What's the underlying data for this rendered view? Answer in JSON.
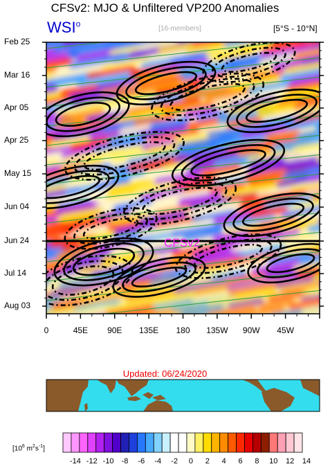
{
  "header": {
    "title": "CFSv2: MJO & Unfiltered VP200 Anomalies",
    "logo_text": "WSI",
    "logo_sup": "o",
    "ensemble_label": "[16-members]",
    "region_label": "[5°S - 10°N]"
  },
  "chart_data": {
    "type": "heatmap",
    "title": "CFSv2: MJO & Unfiltered VP200 Anomalies",
    "y_tick_labels": [
      "Feb 25",
      "Mar 16",
      "Apr 05",
      "Apr 25",
      "May 15",
      "Jun 04",
      "Jun 24",
      "Jul 14",
      "Aug 03"
    ],
    "x_tick_labels": [
      "0",
      "45E",
      "90E",
      "135E",
      "180",
      "135W",
      "90W",
      "45W"
    ],
    "x_axis": "longitude (0 to 360)",
    "y_axis": "date",
    "forecast_start": "Jun 24",
    "forecast_label": "CFSv2",
    "updated": "Updated: 06/24/2020",
    "colorbar": {
      "units": "[10",
      "units_sup": "6",
      "units_rest": " m",
      "units_sup2": "2",
      "units_end": "s",
      "units_sup3": "-1",
      "units_close": "]",
      "tick_labels": [
        "-14",
        "-12",
        "-10",
        "-8",
        "-6",
        "-4",
        "-2",
        "0",
        "2",
        "4",
        "6",
        "8",
        "10",
        "12",
        "14"
      ],
      "colors": [
        "#ffc8ff",
        "#ff96ff",
        "#ff64ff",
        "#e040ff",
        "#b020f0",
        "#8010e0",
        "#5000c8",
        "#2020b4",
        "#1e40dc",
        "#2878ff",
        "#46aaff",
        "#82d2ff",
        "#c8f0ff",
        "#ffffff",
        "#ffffff",
        "#fffac8",
        "#fff064",
        "#ffdc00",
        "#ffb400",
        "#ff8c00",
        "#ff5a00",
        "#ff2800",
        "#e60000",
        "#b40000",
        "#8c1e00",
        "#ff7878",
        "#ffa0b4",
        "#ffc8d2",
        "#ffe4e8"
      ]
    },
    "contours": "MJO filtered anomalies; solid positive, dashed negative"
  }
}
